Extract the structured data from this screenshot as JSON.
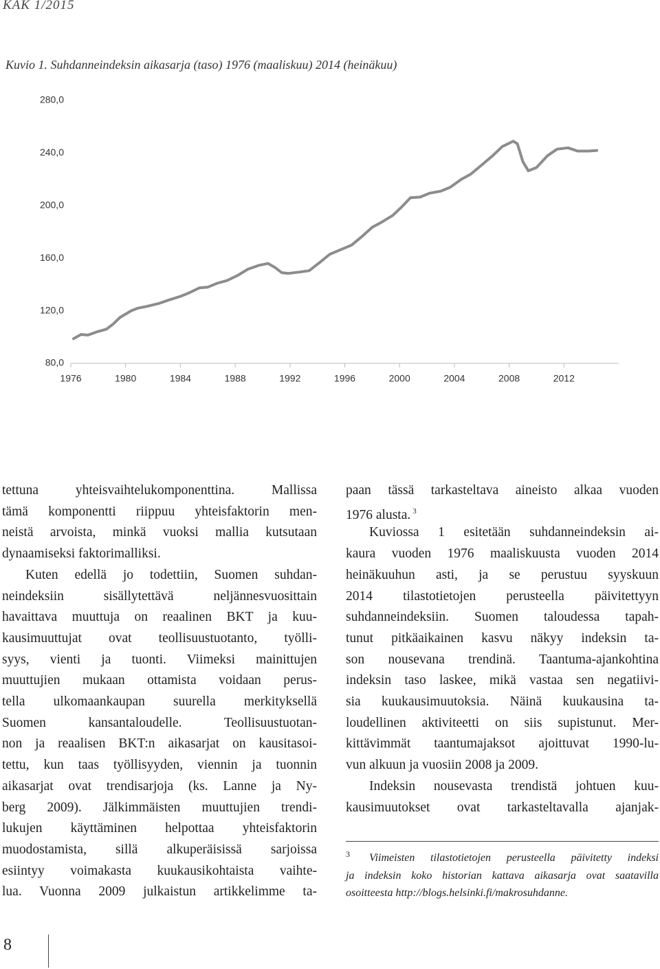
{
  "header": {
    "journal": "KAK 1/2015"
  },
  "figure": {
    "caption": "Kuvio 1. Suhdanneindeksin aikasarja (taso) 1976 (maaliskuu) 2014 (heinäkuu)"
  },
  "chart_data": {
    "type": "line",
    "color": "#8c8c8c",
    "x": [
      1976.2,
      1976.75,
      1977.25,
      1977.9,
      1978.6,
      1979.1,
      1979.6,
      1980.4,
      1980.9,
      1981.6,
      1982.4,
      1983.1,
      1984.0,
      1984.6,
      1985.4,
      1986.0,
      1986.7,
      1987.4,
      1988.2,
      1988.9,
      1989.7,
      1990.4,
      1990.9,
      1991.4,
      1991.9,
      1992.7,
      1993.4,
      1994.2,
      1994.9,
      1995.7,
      1996.5,
      1997.2,
      1998.0,
      1998.7,
      1999.5,
      2000.2,
      2000.8,
      2001.5,
      2002.2,
      2003.0,
      2003.7,
      2004.5,
      2005.2,
      2006.0,
      2006.8,
      2007.5,
      2008.3,
      2008.6,
      2009.0,
      2009.4,
      2010.0,
      2010.8,
      2011.5,
      2012.3,
      2013.0,
      2013.8,
      2014.4
    ],
    "values": [
      98.8,
      102,
      101.5,
      104,
      106,
      110,
      115,
      120,
      122,
      123.5,
      125.5,
      128,
      131,
      133.5,
      137.5,
      138,
      141,
      143,
      147,
      151.5,
      154.5,
      156,
      153,
      149,
      148.5,
      149.5,
      150.5,
      157,
      163,
      166.5,
      170,
      176,
      183.5,
      187.5,
      192.5,
      199.5,
      206,
      206.5,
      209.5,
      211,
      214,
      220,
      224,
      231,
      238,
      245,
      249,
      247,
      233.5,
      226.5,
      229,
      238,
      243,
      244,
      241.5,
      241.5,
      242
    ],
    "xlim": [
      1976,
      2016
    ],
    "xticks": [
      1976,
      1980,
      1984,
      1988,
      1992,
      1996,
      2000,
      2004,
      2008,
      2012
    ],
    "ylim": [
      80,
      280
    ],
    "yticks": [
      {
        "value": 80,
        "label": "80,0"
      },
      {
        "value": 120,
        "label": "120,0"
      },
      {
        "value": 160,
        "label": "160,0"
      },
      {
        "value": 200,
        "label": "200,0"
      },
      {
        "value": 240,
        "label": "240,0"
      },
      {
        "value": 280,
        "label": "280,0"
      }
    ]
  },
  "left_column": [
    "tettuna yhteisvaihtelukomponenttina. Mallissa",
    "tämä komponentti riippuu yhteisfaktorin men-",
    "neistä arvoista, minkä vuoksi mallia kutsutaan",
    "dynaamiseksi faktorimalliksi.",
    "Kuten edellä jo todettiin, Suomen suhdan-",
    "neindeksiin sisällytettävä neljännesvuosittain",
    "havaittava muuttuja on reaalinen BKT ja kuu-",
    "kausimuuttujat ovat teollisuustuotanto, työlli-",
    "syys, vienti ja tuonti. Viimeksi mainittujen",
    "muuttujien mukaan ottamista voidaan perus-",
    "tella ulkomaankaupan suurella merkityksellä",
    "Suomen kansantaloudelle. Teollisuustuotan-",
    "non ja reaalisen BKT:n aikasarjat on kausitasoi-",
    "tettu, kun taas työllisyyden, viennin ja tuonnin",
    "aikasarjat ovat trendisarjoja (ks. Lanne ja Ny-",
    "berg 2009). Jälkimmäisten muuttujien trendi-",
    "lukujen käyttäminen helpottaa yhteisfaktorin",
    "muodostamista, sillä alkuperäisissä sarjoissa",
    "esiintyy voimakasta kuukausikohtaista vaihte-",
    "lua. Vuonna 2009 julkaistun artikkelimme ta-"
  ],
  "right_column": [
    "paan tässä tarkasteltava aineisto alkaa vuoden",
    "1976 alusta.",
    "Kuviossa 1 esitetään suhdanneindeksin ai-",
    "kaura vuoden 1976 maaliskuusta vuoden 2014",
    "heinäkuuhun asti, ja se perustuu syyskuun",
    "2014 tilastotietojen perusteella päivitettyyn",
    "suhdanneindeksiin. Suomen taloudessa tapah-",
    "tunut pitkäaikainen kasvu näkyy indeksin ta-",
    "son nousevana trendinä. Taantuma-ajankohtina",
    "indeksin taso laskee, mikä vastaa sen negatiivi-",
    "sia kuukausimuutoksia. Näinä kuukausina ta-",
    "loudellinen aktiviteetti on siis supistunut. Mer-",
    "kittävimmät taantumajaksot ajoittuvat 1990-lu-",
    "vun alkuun ja vuosiin 2008 ja 2009.",
    "Indeksin nousevasta trendistä johtuen kuu-",
    "kausimuutokset ovat tarkasteltavalla ajanjak-"
  ],
  "footnote_ref": "3",
  "footnote": {
    "number": "3",
    "lines": [
      "Viimeisten tilastotietojen perusteella päivitetty indeksi",
      "ja indeksin koko historian kattava aikasarja ovat saatavilla",
      "osoitteesta http://blogs.helsinki.fi/makrosuhdanne."
    ]
  },
  "footer": {
    "page_number": "8"
  }
}
